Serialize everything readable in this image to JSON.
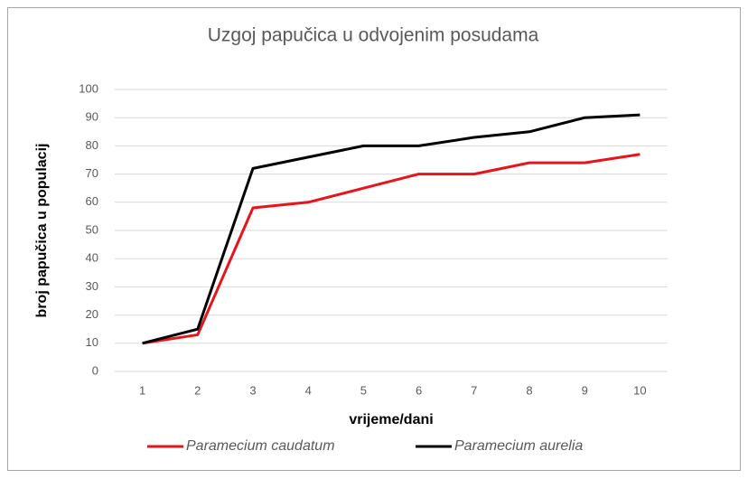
{
  "chart_data": {
    "type": "line",
    "title": "Uzgoj papučica u odvojenim posudama",
    "x_label": "vrijeme/dani",
    "y_label": "broj papučica u populacij",
    "categories": [
      "1",
      "2",
      "3",
      "4",
      "5",
      "6",
      "7",
      "8",
      "9",
      "10"
    ],
    "series": [
      {
        "name": "Paramecium caudatum",
        "color": "#e8141c",
        "values": [
          10,
          13,
          58,
          60,
          65,
          70,
          70,
          74,
          74,
          77
        ]
      },
      {
        "name": "Paramecium aurelia",
        "color": "#000000",
        "values": [
          10,
          15,
          72,
          76,
          80,
          80,
          83,
          85,
          90,
          91
        ]
      }
    ],
    "ylim": [
      0,
      100
    ],
    "yticks": [
      0,
      10,
      20,
      30,
      40,
      50,
      60,
      70,
      80,
      90,
      100
    ],
    "grid": true,
    "legend": "bottom"
  }
}
